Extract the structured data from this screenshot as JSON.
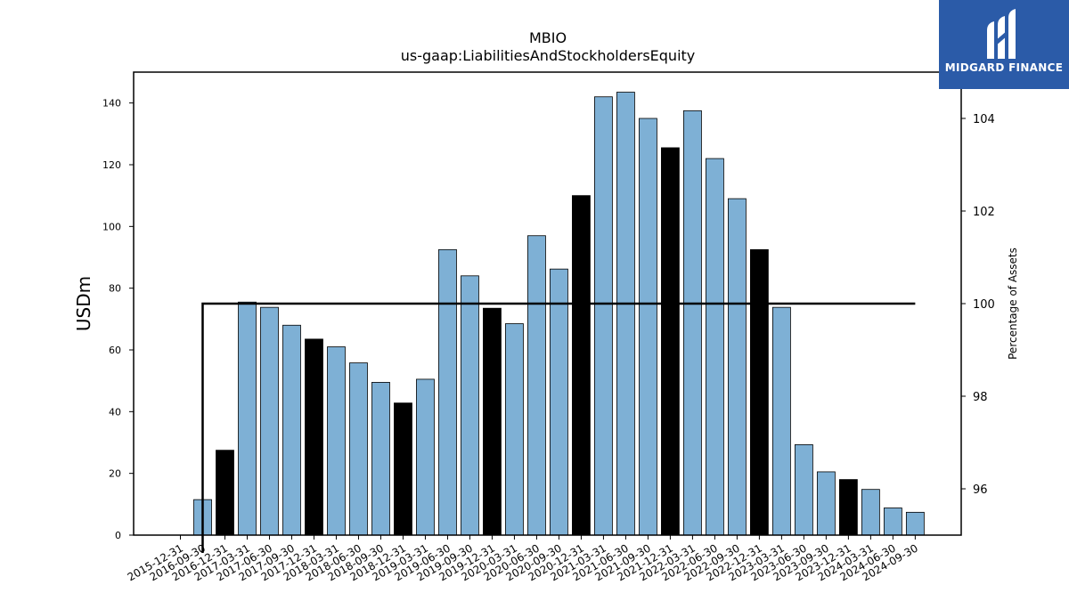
{
  "chart_data": {
    "type": "bar",
    "title": "MBIO",
    "subtitle": "us-gaap:LiabilitiesAndStockholdersEquity",
    "ylabel": "USDm",
    "y2label": "Percentage of Assets",
    "ylim": [
      0,
      150
    ],
    "y2lim": [
      95,
      105
    ],
    "yticks": [
      0,
      20,
      40,
      60,
      80,
      100,
      120,
      140
    ],
    "y2ticks": [
      96,
      98,
      100,
      102,
      104
    ],
    "categories": [
      "2015-12-31",
      "2016-09-30",
      "2016-12-31",
      "2017-03-31",
      "2017-06-30",
      "2017-09-30",
      "2017-12-31",
      "2018-03-31",
      "2018-06-30",
      "2018-09-30",
      "2018-12-31",
      "2019-03-31",
      "2019-06-30",
      "2019-09-30",
      "2019-12-31",
      "2020-03-31",
      "2020-06-30",
      "2020-09-30",
      "2020-12-31",
      "2021-03-31",
      "2021-06-30",
      "2021-09-30",
      "2021-12-31",
      "2022-03-31",
      "2022-06-30",
      "2022-09-30",
      "2022-12-31",
      "2023-03-31",
      "2023-06-30",
      "2023-09-30",
      "2023-12-31",
      "2024-03-31",
      "2024-06-30",
      "2024-09-30"
    ],
    "series": [
      {
        "values": [
          0,
          11.5,
          27.5,
          75.5,
          73.8,
          68,
          63.5,
          61,
          55.8,
          49.5,
          42.8,
          50.5,
          92.5,
          84,
          73.5,
          68.5,
          97,
          86.2,
          110,
          142,
          143.5,
          135,
          125.5,
          137.5,
          122,
          109,
          92.5,
          73.8,
          29.3,
          20.5,
          18,
          14.8,
          8.8,
          7.4
        ],
        "highlight_indices": [
          2,
          6,
          10,
          14,
          18,
          22,
          26,
          30
        ],
        "colors": {
          "normal": "#7eb0d5",
          "highlight": "#000000"
        }
      },
      {
        "type": "line",
        "y_axis": "right",
        "values": [
          95,
          100,
          100,
          100,
          100,
          100,
          100,
          100,
          100,
          100,
          100,
          100,
          100,
          100,
          100,
          100,
          100,
          100,
          100,
          100,
          100,
          100,
          100,
          100,
          100,
          100,
          100,
          100,
          100,
          100,
          100,
          100,
          100,
          100
        ],
        "color": "#000000"
      }
    ],
    "grid": false
  },
  "brand": {
    "name": "MIDGARD FINANCE",
    "color": "#2b5ba8",
    "icon": "midgard-logo-icon"
  }
}
